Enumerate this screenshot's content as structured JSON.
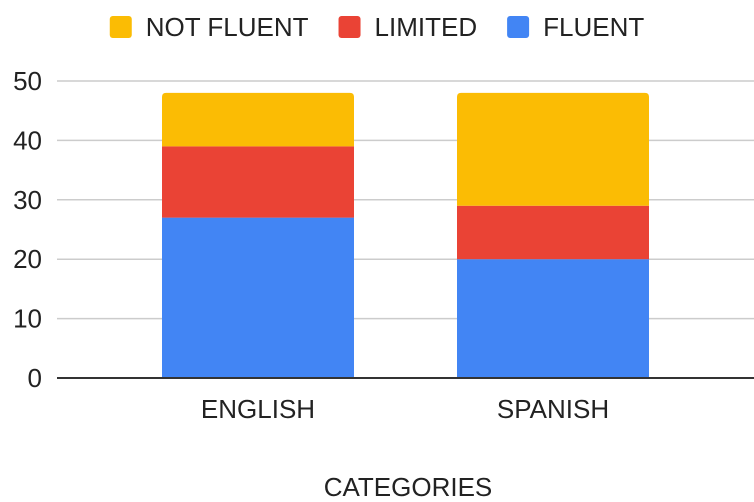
{
  "chart_data": {
    "type": "bar",
    "stacked": true,
    "title": "",
    "xlabel": "CATEGORIES",
    "ylabel": "",
    "ylim": [
      0,
      50
    ],
    "yticks": [
      0,
      10,
      20,
      30,
      40,
      50
    ],
    "grid": true,
    "legend_position": "top",
    "categories": [
      "ENGLISH",
      "SPANISH"
    ],
    "series": [
      {
        "name": "FLUENT",
        "color": "#4285F4",
        "values": [
          27,
          20
        ]
      },
      {
        "name": "LIMITED",
        "color": "#EA4335",
        "values": [
          12,
          9
        ]
      },
      {
        "name": "NOT FLUENT",
        "color": "#FBBC04",
        "values": [
          9,
          19
        ]
      }
    ],
    "legend_order": [
      "NOT FLUENT",
      "LIMITED",
      "FLUENT"
    ]
  }
}
